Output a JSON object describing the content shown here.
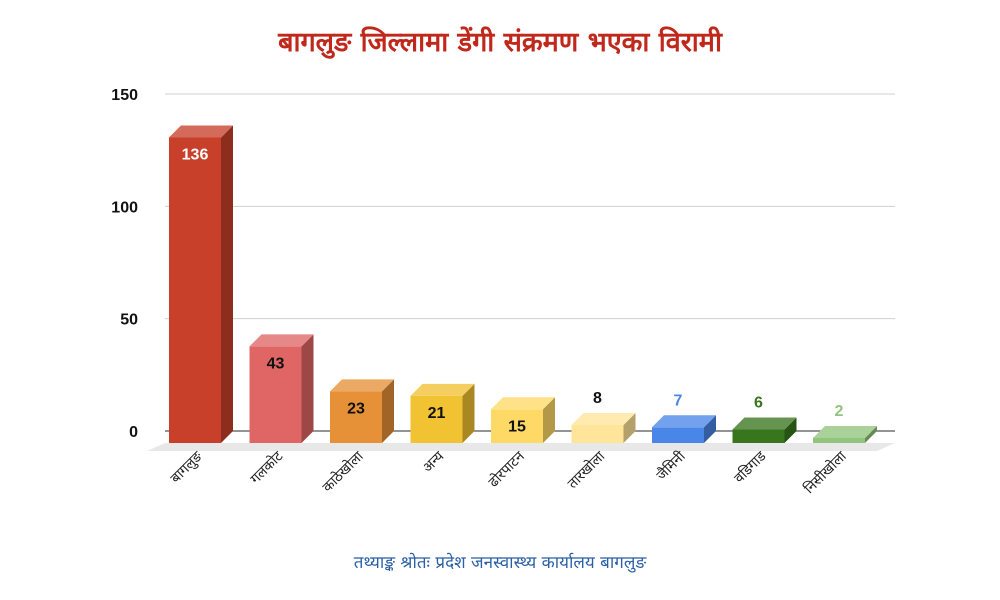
{
  "chart_data": {
    "type": "bar",
    "title": "बागलुङ जिल्लामा डेंगी संक्रमण भएका विरामी",
    "categories": [
      "बागलुङ",
      "गलकोट",
      "काठेखोला",
      "अन्य",
      "ढोरपाटन",
      "तारखोला",
      "जैमिनी",
      "वडिगाड",
      "निसीखोला"
    ],
    "values": [
      136,
      43,
      23,
      21,
      15,
      8,
      7,
      6,
      2
    ],
    "colors": [
      "#c8402a",
      "#e06666",
      "#e69138",
      "#f1c232",
      "#ffd966",
      "#ffe599",
      "#4a86e8",
      "#38761d",
      "#93c47d"
    ],
    "label_colors": [
      "#ffffff",
      "#111111",
      "#111111",
      "#111111",
      "#111111",
      "#111111",
      "#4a86e8",
      "#38761d",
      "#93c47d"
    ],
    "yticks": [
      "0",
      "50",
      "100",
      "150"
    ],
    "ylim": [
      0,
      150
    ],
    "grid": true,
    "source": "तथ्याङ्क श्रोतः प्रदेश जनस्वास्थ्य कार्यालय बागलुङ"
  }
}
